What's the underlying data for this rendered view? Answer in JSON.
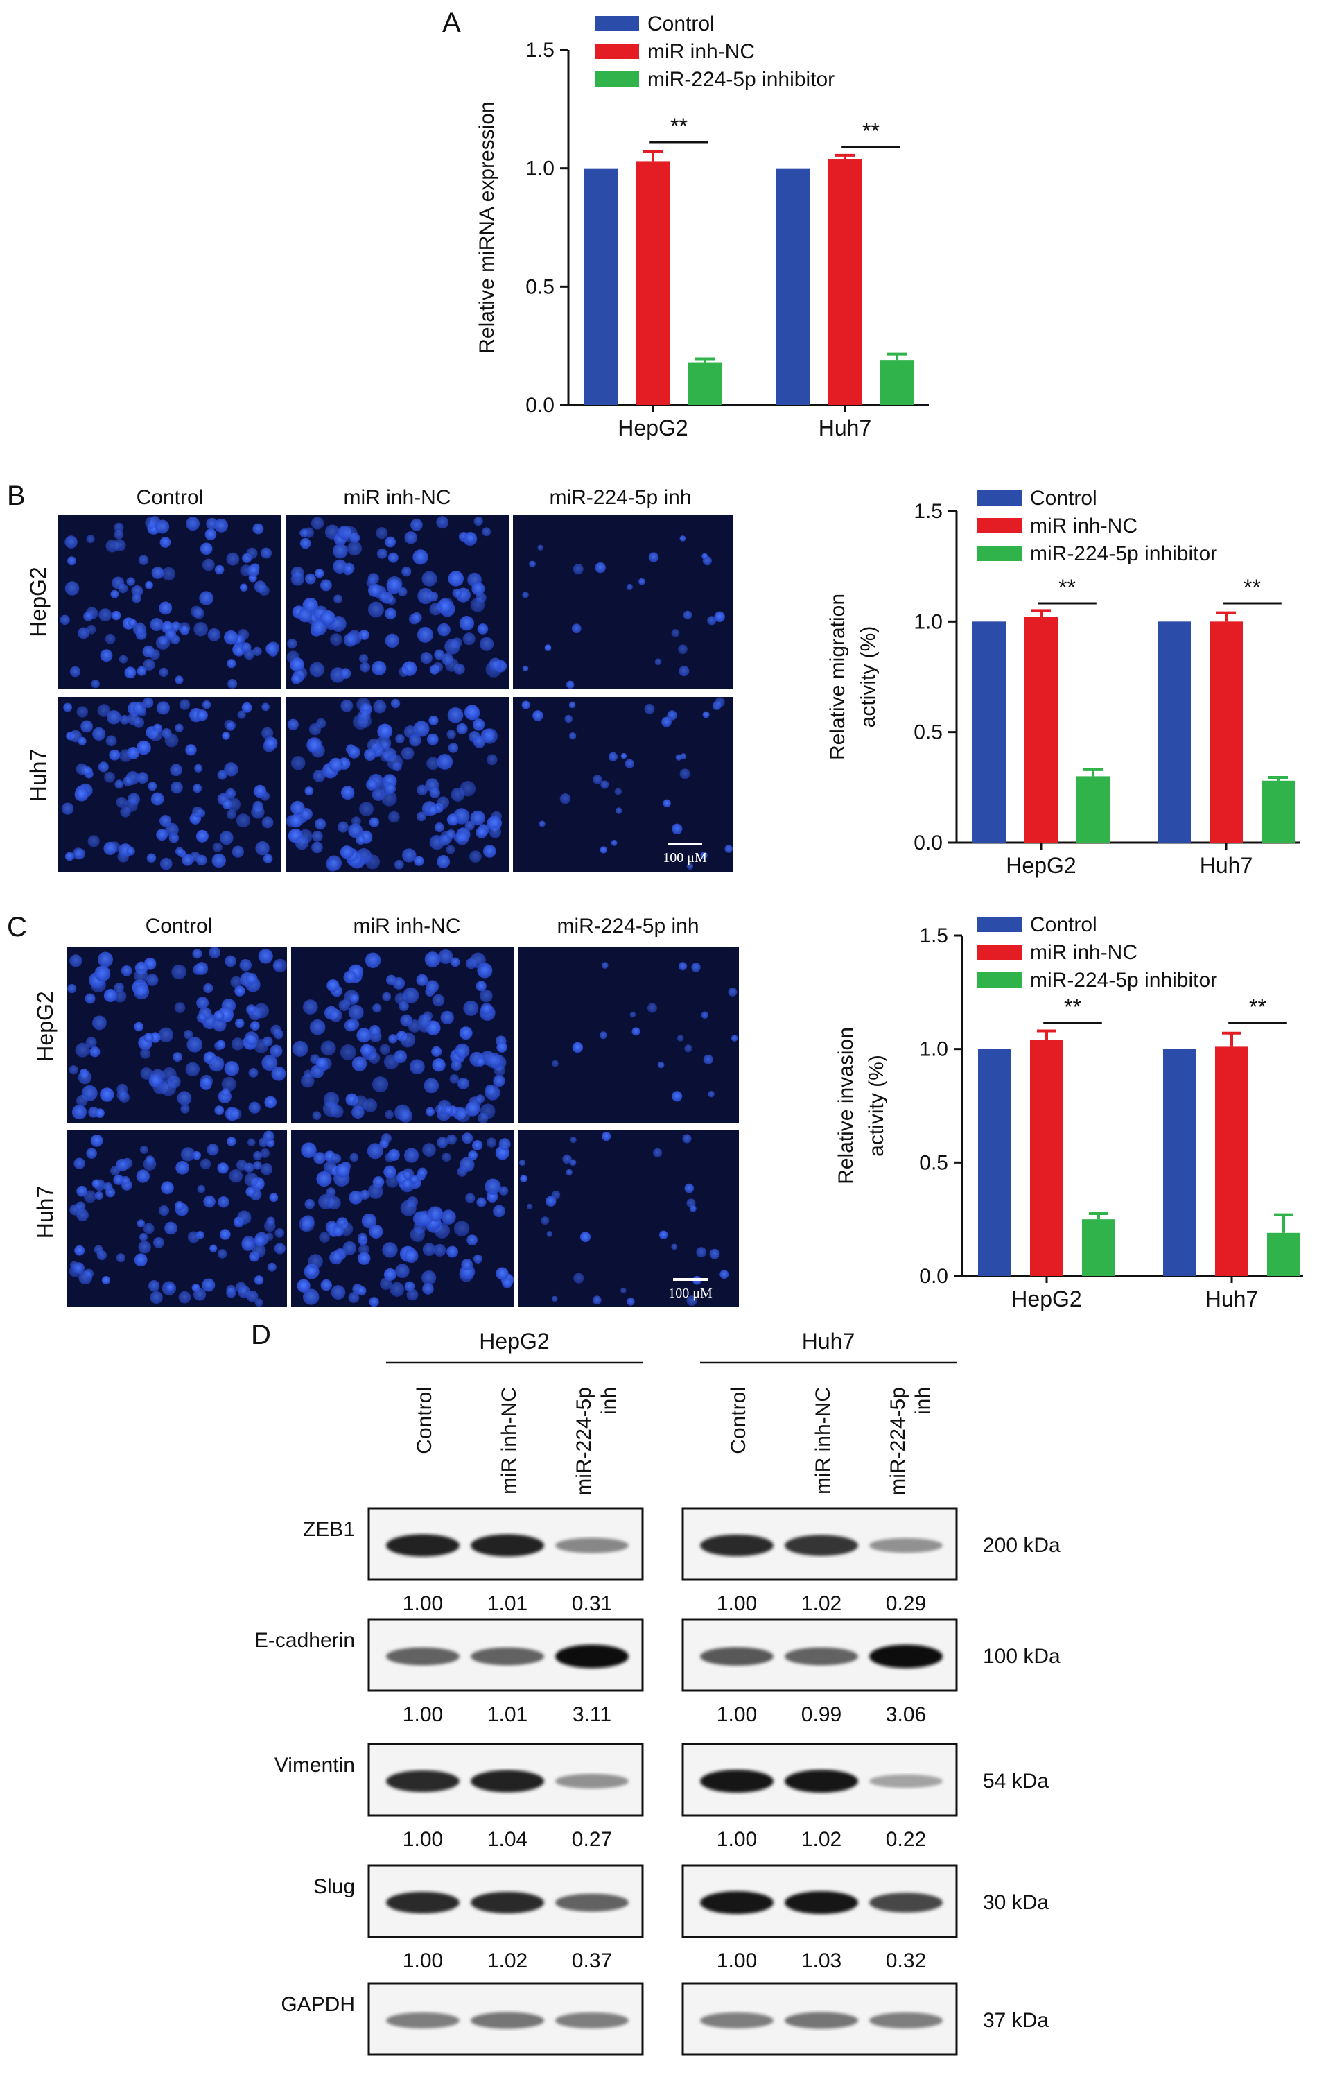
{
  "colors": {
    "control": "#2b4ca8",
    "nc": "#e41d24",
    "inh": "#2fb34a",
    "err_red": "#e41d24",
    "err_green": "#2fb34a",
    "cell_bg": "#0a0f35",
    "cell": "#2f5bea"
  },
  "panels": {
    "A": {
      "letter": "A"
    },
    "B": {
      "letter": "B",
      "micro_cols": [
        "Control",
        "miR inh-NC",
        "miR-224-5p inh"
      ],
      "micro_rows": [
        "HepG2",
        "Huh7"
      ],
      "scale": "100 μM"
    },
    "C": {
      "letter": "C",
      "micro_cols": [
        "Control",
        "miR inh-NC",
        "miR-224-5p inh"
      ],
      "micro_rows": [
        "HepG2",
        "Huh7"
      ],
      "scale": "100 μM"
    },
    "D": {
      "letter": "D"
    }
  },
  "chart_data": [
    {
      "type": "bar",
      "panel": "A",
      "categories": [
        "HepG2",
        "Huh7"
      ],
      "series": [
        {
          "name": "Control",
          "values": [
            1.0,
            1.0
          ],
          "errors": [
            0,
            0
          ]
        },
        {
          "name": "miR inh-NC",
          "values": [
            1.03,
            1.04
          ],
          "errors": [
            0.04,
            0.015
          ]
        },
        {
          "name": "miR-224-5p inhibitor",
          "values": [
            0.18,
            0.19
          ],
          "errors": [
            0.015,
            0.025
          ]
        }
      ],
      "ylabel": "Relative miRNA expression",
      "ylim": [
        0,
        1.5
      ],
      "yticks": [
        "0.0",
        "0.5",
        "1.0",
        "1.5"
      ],
      "significance": [
        "**",
        "**"
      ],
      "legend": "top"
    },
    {
      "type": "bar",
      "panel": "B",
      "categories": [
        "HepG2",
        "Huh7"
      ],
      "series": [
        {
          "name": "Control",
          "values": [
            1.0,
            1.0
          ],
          "errors": [
            0,
            0
          ]
        },
        {
          "name": "miR inh-NC",
          "values": [
            1.02,
            1.0
          ],
          "errors": [
            0.03,
            0.04
          ]
        },
        {
          "name": "miR-224-5p inhibitor",
          "values": [
            0.3,
            0.28
          ],
          "errors": [
            0.03,
            0.015
          ]
        }
      ],
      "ylabel": [
        "Relative migration",
        "activity (%)"
      ],
      "ylim": [
        0,
        1.5
      ],
      "yticks": [
        "0.0",
        "0.5",
        "1.0",
        "1.5"
      ],
      "significance": [
        "**",
        "**"
      ],
      "legend": "top"
    },
    {
      "type": "bar",
      "panel": "C",
      "categories": [
        "HepG2",
        "Huh7"
      ],
      "series": [
        {
          "name": "Control",
          "values": [
            1.0,
            1.0
          ],
          "errors": [
            0,
            0
          ]
        },
        {
          "name": "miR inh-NC",
          "values": [
            1.04,
            1.01
          ],
          "errors": [
            0.04,
            0.06
          ]
        },
        {
          "name": "miR-224-5p inhibitor",
          "values": [
            0.25,
            0.19
          ],
          "errors": [
            0.025,
            0.08
          ]
        }
      ],
      "ylabel": [
        "Relative invasion",
        "activity (%)"
      ],
      "ylim": [
        0,
        1.5
      ],
      "yticks": [
        "0.0",
        "0.5",
        "1.0",
        "1.5"
      ],
      "significance": [
        "**",
        "**"
      ],
      "legend": "top"
    },
    {
      "type": "table",
      "panel": "D",
      "groups": [
        "HepG2",
        "Huh7"
      ],
      "lanes": [
        "Control",
        "miR inh-NC",
        "miR-224-5p inh"
      ],
      "proteins": [
        {
          "name": "ZEB1",
          "kda": "200 kDa",
          "hep": [
            "1.00",
            "1.01",
            "0.31"
          ],
          "huh": [
            "1.00",
            "1.02",
            "0.29"
          ],
          "hep_int": [
            0.9,
            0.9,
            0.35
          ],
          "huh_int": [
            0.85,
            0.8,
            0.3
          ]
        },
        {
          "name": "E-cadherin",
          "kda": "100 kDa",
          "hep": [
            "1.00",
            "1.01",
            "3.11"
          ],
          "huh": [
            "1.00",
            "0.99",
            "3.06"
          ],
          "hep_int": [
            0.55,
            0.55,
            1.0
          ],
          "huh_int": [
            0.6,
            0.55,
            1.0
          ]
        },
        {
          "name": "Vimentin",
          "kda": "54 kDa",
          "hep": [
            "1.00",
            "1.04",
            "0.27"
          ],
          "huh": [
            "1.00",
            "1.02",
            "0.22"
          ],
          "hep_int": [
            0.85,
            0.9,
            0.3
          ],
          "huh_int": [
            0.95,
            0.95,
            0.2
          ]
        },
        {
          "name": "Slug",
          "kda": "30 kDa",
          "hep": [
            "1.00",
            "1.02",
            "0.37"
          ],
          "huh": [
            "1.00",
            "1.03",
            "0.32"
          ],
          "hep_int": [
            0.85,
            0.85,
            0.55
          ],
          "huh_int": [
            0.95,
            0.95,
            0.7
          ]
        },
        {
          "name": "GAPDH",
          "kda": "37 kDa",
          "hep": [],
          "huh": [],
          "hep_int": [
            0.4,
            0.45,
            0.4
          ],
          "huh_int": [
            0.4,
            0.45,
            0.4
          ]
        }
      ]
    }
  ]
}
